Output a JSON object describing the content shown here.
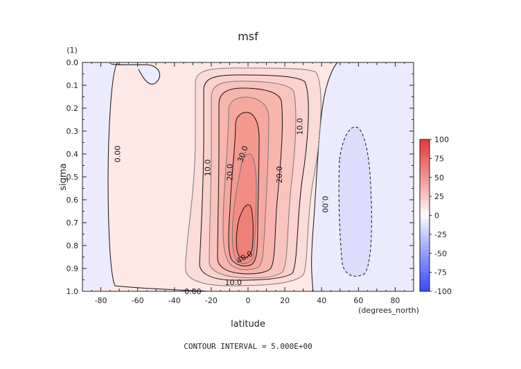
{
  "chart_data": {
    "type": "contour",
    "title": "msf",
    "xlabel": "latitude",
    "xunits": "(degrees_north)",
    "ylabel": "sigma",
    "yunits": "(1)",
    "xlim": [
      -90,
      90
    ],
    "ylim": [
      1.0,
      0.0
    ],
    "xticks": [
      -80,
      -60,
      -40,
      -20,
      0,
      20,
      40,
      60,
      80
    ],
    "yticks": [
      "0.0",
      "0.1",
      "0.2",
      "0.3",
      "0.4",
      "0.5",
      "0.6",
      "0.7",
      "0.8",
      "0.9",
      "1.0"
    ],
    "contour_interval_text": "CONTOUR INTERVAL = 5.000E+00",
    "contour_labels": [
      {
        "text": "0.00",
        "x": -71,
        "y": 0.4,
        "rotate": -90
      },
      {
        "text": "10.0",
        "x": -22,
        "y": 0.46,
        "rotate": -90
      },
      {
        "text": "20.0",
        "x": -10,
        "y": 0.48,
        "rotate": -90
      },
      {
        "text": "30.0",
        "x": -3,
        "y": 0.4,
        "rotate": -70
      },
      {
        "text": "10.0",
        "x": 28,
        "y": 0.28,
        "rotate": -90
      },
      {
        "text": "20.0",
        "x": 17,
        "y": 0.49,
        "rotate": -90
      },
      {
        "text": "0.00",
        "x": 42,
        "y": 0.62,
        "rotate": 90
      },
      {
        "text": "40.0",
        "x": -2,
        "y": 0.85,
        "rotate": -30
      },
      {
        "text": "10.0",
        "x": -8,
        "y": 0.96,
        "rotate": 0
      },
      {
        "text": "0.00",
        "x": -30,
        "y": 1.0,
        "rotate": 0
      }
    ],
    "colorbar": {
      "ticks": [
        100,
        75,
        50,
        25,
        0,
        -25,
        -50,
        -75,
        -100
      ],
      "min": -100,
      "max": 100,
      "pos_color": "#e53935",
      "neg_color": "#3949ff"
    }
  }
}
